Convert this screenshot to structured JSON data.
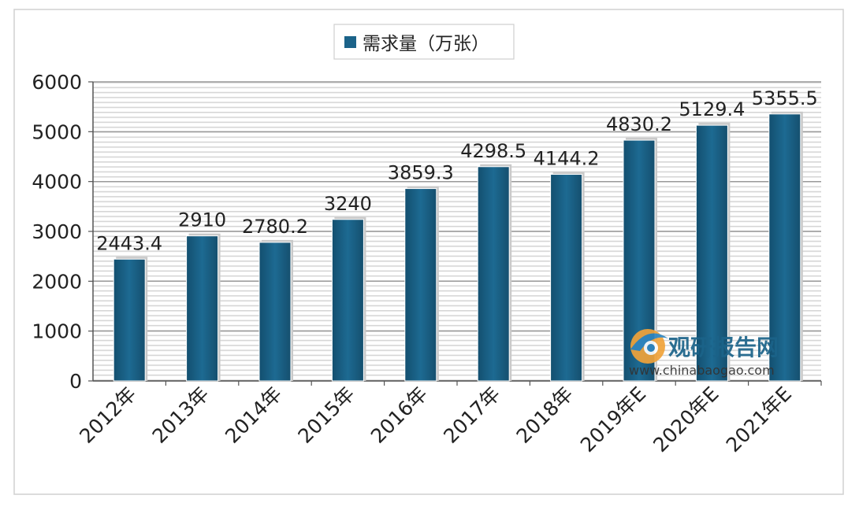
{
  "chart_data": {
    "type": "bar",
    "categories": [
      "2012年",
      "2013年",
      "2014年",
      "2015年",
      "2016年",
      "2017年",
      "2018年",
      "2019年E",
      "2020年E",
      "2021年E"
    ],
    "series": [
      {
        "name": "需求量（万张）",
        "values": [
          2443.4,
          2910,
          2780.2,
          3240,
          3859.3,
          4298.5,
          4144.2,
          4830.2,
          5129.4,
          5355.5
        ],
        "color": "#1b6389"
      }
    ],
    "data_labels": [
      "2443.4",
      "2910",
      "2780.2",
      "3240",
      "3859.3",
      "4298.5",
      "4144.2",
      "4830.2",
      "5129.4",
      "5355.5"
    ],
    "yticks": [
      "0",
      "1000",
      "2000",
      "3000",
      "4000",
      "5000",
      "6000"
    ],
    "ylim": [
      0,
      6000
    ],
    "grid": true,
    "legend": "top-center"
  },
  "watermark": {
    "brand": "观研报告网",
    "url": "www.chinabaogao.com"
  }
}
